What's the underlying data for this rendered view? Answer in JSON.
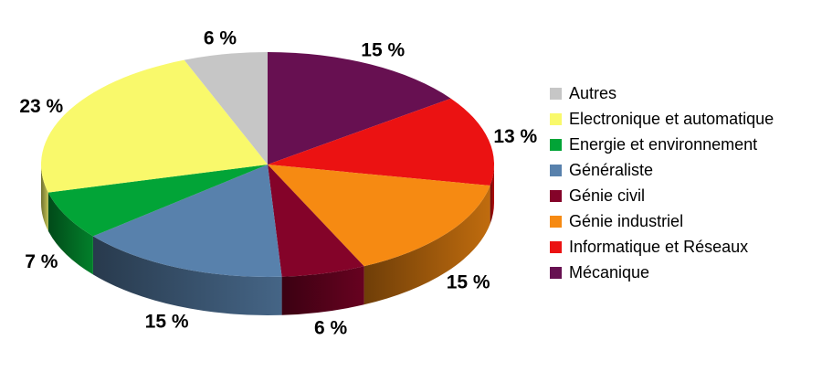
{
  "chart_data": {
    "type": "pie",
    "style": "3d",
    "title": "",
    "unit": "%",
    "label_suffix": " %",
    "legend_position": "right",
    "slices": [
      {
        "label": "Autres",
        "value": 6,
        "color": "#C6C6C6"
      },
      {
        "label": "Electronique et automatique",
        "value": 23,
        "color": "#F9F96B"
      },
      {
        "label": "Energie et environnement",
        "value": 7,
        "color": "#02A437"
      },
      {
        "label": "Généraliste",
        "value": 15,
        "color": "#5881AC"
      },
      {
        "label": "Génie civil",
        "value": 6,
        "color": "#840329"
      },
      {
        "label": "Génie industriel",
        "value": 15,
        "color": "#F68A12"
      },
      {
        "label": "Informatique et Réseaux",
        "value": 13,
        "color": "#EB1212"
      },
      {
        "label": "Mécanique",
        "value": 15,
        "color": "#671051"
      }
    ],
    "draw_order_clockwise_from_top": [
      "Mécanique",
      "Informatique et Réseaux",
      "Génie industriel",
      "Génie civil",
      "Généraliste",
      "Energie et environnement",
      "Electronique et automatique",
      "Autres"
    ]
  }
}
